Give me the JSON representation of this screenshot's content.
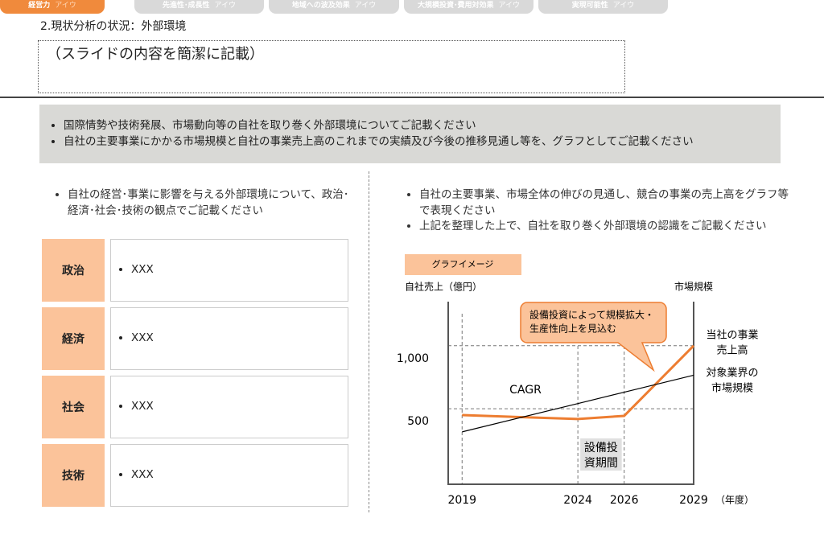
{
  "tabs": [
    {
      "name": "経営力",
      "sub": "アイウ"
    },
    {
      "name": "先進性･成長性",
      "sub": "アイウ"
    },
    {
      "name": "地域への波及効果",
      "sub": "アイウ"
    },
    {
      "name": "大規模投資･費用対効果",
      "sub": "アイウ"
    },
    {
      "name": "実現可能性",
      "sub": "アイウ"
    }
  ],
  "header": {
    "section": "2.現状分析の状況：外部環境",
    "summary": "（スライドの内容を簡潔に記載）"
  },
  "instructions": [
    "国際情勢や技術発展、市場動向等の自社を取り巻く外部環境についてご記載ください",
    "自社の主要事業にかかる市場規模と自社の事業売上高のこれまでの実績及び今後の推移見通し等を、グラフとしてご記載ください"
  ],
  "left": {
    "bullet": "自社の経営･事業に影響を与える外部環境について、政治･経済･社会･技術の観点でご記載ください",
    "table": {
      "rows": [
        [
          "政治",
          "XXX"
        ],
        [
          "経済",
          "XXX"
        ],
        [
          "社会",
          "XXX"
        ],
        [
          "技術",
          "XXX"
        ]
      ]
    }
  },
  "right": {
    "bullets": [
      "自社の主要事業、市場全体の伸びの見通し、競合の事業の売上高をグラフ等で表現ください",
      "上記を整理した上で、自社を取り巻く外部環境の認識をご記載ください"
    ]
  },
  "chart_data": {
    "type": "line",
    "badge": "グラフイメージ",
    "y_label": "自社売上（億円）",
    "y2_label": "市場規模",
    "x_unit": "（年度）",
    "x": [
      2019,
      2024,
      2026,
      2029
    ],
    "xlim": [
      2018.4,
      2029
    ],
    "xticks": [
      2019,
      2024,
      2026,
      2029
    ],
    "ylim": [
      -100,
      1350
    ],
    "yticks": [
      {
        "value": 500,
        "label": "500"
      },
      {
        "value": 1000,
        "label": "1,000"
      }
    ],
    "grid": true,
    "series": [
      {
        "name": [
          "当社の事業",
          "売上高"
        ],
        "color": "#ed7d31",
        "values": [
          449,
          418,
          443,
          1000
        ]
      },
      {
        "name": [
          "対象業界の",
          "市場規模"
        ],
        "color": "#000000",
        "values": [
          316,
          541,
          631,
          766
        ]
      }
    ],
    "annotations": {
      "callout": [
        "設備投資によって規模拡大・",
        "生産性向上を見込む"
      ],
      "cagr": "CAGR",
      "period": [
        "設備投",
        "資期間"
      ]
    }
  }
}
